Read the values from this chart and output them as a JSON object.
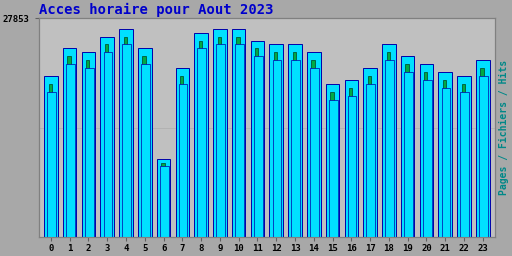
{
  "title": "Acces horaire pour Aout 2023",
  "title_color": "#0000cc",
  "title_fontsize": 10,
  "ylabel": "Pages / Fichiers / Hits",
  "ylabel_color": "#008888",
  "ylabel_fontsize": 7,
  "categories": [
    0,
    1,
    2,
    3,
    4,
    5,
    6,
    7,
    8,
    9,
    10,
    11,
    12,
    13,
    14,
    15,
    16,
    17,
    18,
    19,
    20,
    21,
    22,
    23
  ],
  "hits_values": [
    20500,
    24000,
    23500,
    25500,
    26500,
    24000,
    10000,
    21500,
    26000,
    26500,
    26500,
    25000,
    24500,
    24500,
    23500,
    19500,
    20000,
    21500,
    24500,
    23000,
    22000,
    21000,
    20500,
    22500
  ],
  "pages_values": [
    19500,
    23000,
    22500,
    24500,
    25500,
    23000,
    9500,
    20500,
    25000,
    25500,
    25500,
    24000,
    23500,
    23500,
    22500,
    18500,
    19000,
    20500,
    23500,
    22000,
    21000,
    20000,
    19500,
    21500
  ],
  "fichiers_values": [
    18500,
    22000,
    21500,
    23500,
    24500,
    22000,
    9000,
    19500,
    24000,
    24500,
    24500,
    23000,
    22500,
    22500,
    21500,
    17500,
    18000,
    19500,
    22500,
    21000,
    20000,
    19000,
    18500,
    20500
  ],
  "cyan_color": "#00e0ff",
  "cyan_edge": "#0000aa",
  "green_color": "#00aa44",
  "green_edge": "#004422",
  "background_color": "#a8a8a8",
  "plot_bg_color": "#c0c0c0",
  "grid_color": "#b0b0b0",
  "ytick_label": "27853",
  "ylim_max": 27853,
  "bar_width": 0.72
}
